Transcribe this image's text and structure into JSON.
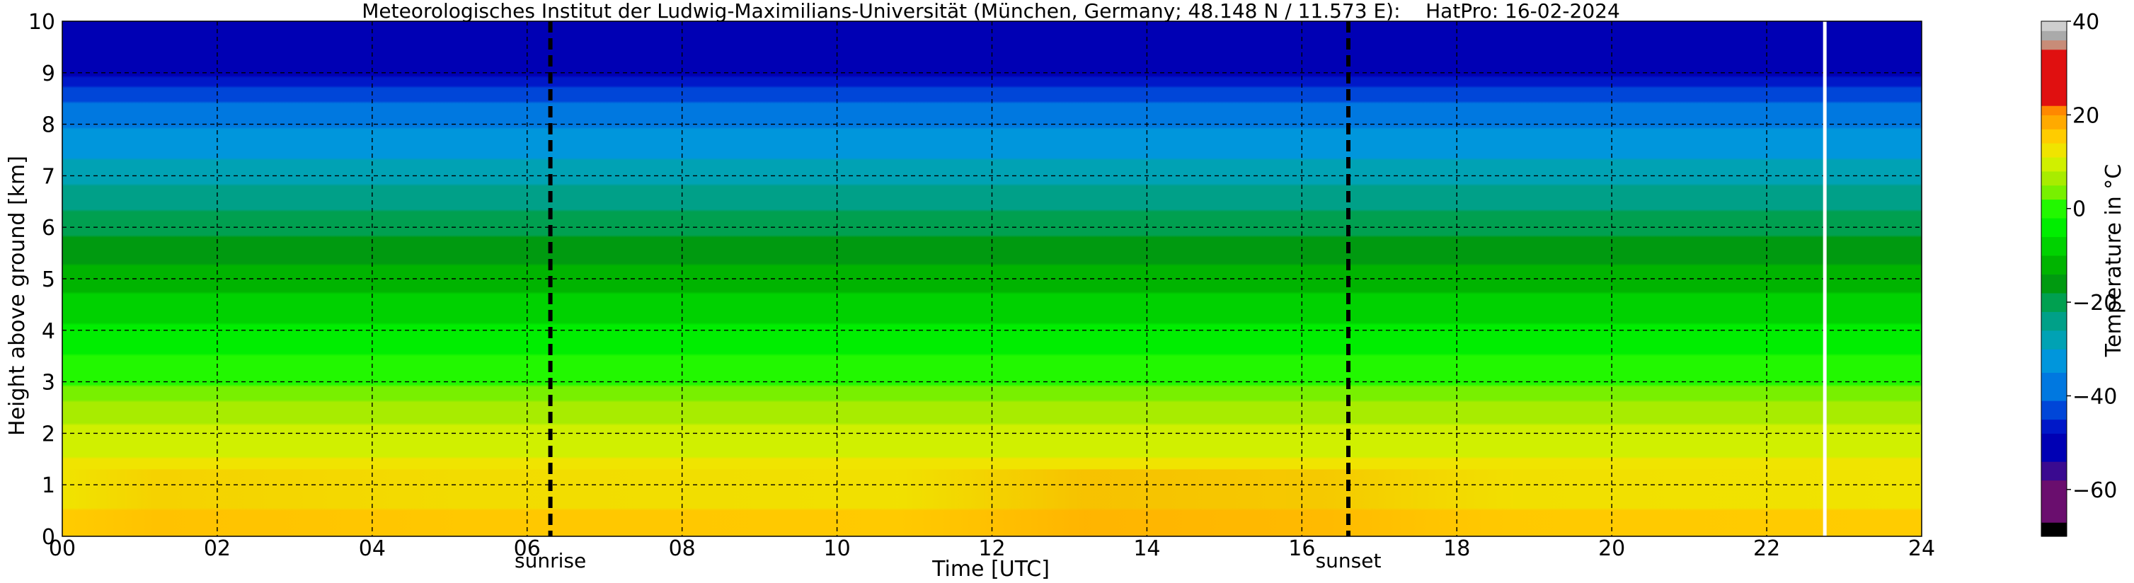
{
  "chart_data": {
    "type": "heatmap",
    "title": "Meteorologisches Institut der Ludwig-Maximilians-Universität (München, Germany; 48.148 N / 11.573 E):    HatPro: 16-02-2024",
    "xlabel": "Time [UTC]",
    "ylabel": "Height above ground [km]",
    "xlim": [
      0,
      24
    ],
    "ylim": [
      0,
      10
    ],
    "x_ticks": [
      "00",
      "02",
      "04",
      "06",
      "08",
      "10",
      "12",
      "14",
      "16",
      "18",
      "20",
      "22",
      "24"
    ],
    "y_ticks": [
      "0",
      "1",
      "2",
      "3",
      "4",
      "5",
      "6",
      "7",
      "8",
      "9",
      "10"
    ],
    "grid": true,
    "events": [
      {
        "label": "sunrise",
        "x": 6.3
      },
      {
        "label": "sunset",
        "x": 16.6
      }
    ],
    "data_end_x": 22.75,
    "colorbar": {
      "label": "Temperature in °C",
      "range": [
        -70,
        40
      ],
      "ticks": [
        "40",
        "20",
        "0",
        "−20",
        "−40",
        "−60"
      ],
      "colors": [
        {
          "from": -70,
          "to": -67,
          "color": "#000000"
        },
        {
          "from": -67,
          "to": -58,
          "color": "#6a0e6e"
        },
        {
          "from": -58,
          "to": -54,
          "color": "#3a0a90"
        },
        {
          "from": -54,
          "to": -48,
          "color": "#0000b4"
        },
        {
          "from": -48,
          "to": -45,
          "color": "#0018c8"
        },
        {
          "from": -45,
          "to": -41,
          "color": "#0046d8"
        },
        {
          "from": -41,
          "to": -35,
          "color": "#0078e0"
        },
        {
          "from": -35,
          "to": -30,
          "color": "#0096dc"
        },
        {
          "from": -30,
          "to": -26,
          "color": "#00a2b4"
        },
        {
          "from": -26,
          "to": -22,
          "color": "#00a088"
        },
        {
          "from": -22,
          "to": -18,
          "color": "#00a050"
        },
        {
          "from": -18,
          "to": -14,
          "color": "#009a10"
        },
        {
          "from": -14,
          "to": -10,
          "color": "#00b400"
        },
        {
          "from": -10,
          "to": -6,
          "color": "#00d200"
        },
        {
          "from": -6,
          "to": -2,
          "color": "#00ee00"
        },
        {
          "from": -2,
          "to": 2,
          "color": "#22f800"
        },
        {
          "from": 2,
          "to": 5,
          "color": "#78f000"
        },
        {
          "from": 5,
          "to": 8,
          "color": "#a8ec00"
        },
        {
          "from": 8,
          "to": 11,
          "color": "#d0f000"
        },
        {
          "from": 11,
          "to": 14,
          "color": "#f0e400"
        },
        {
          "from": 14,
          "to": 17,
          "color": "#ffcc00"
        },
        {
          "from": 17,
          "to": 20,
          "color": "#ffaa00"
        },
        {
          "from": 20,
          "to": 22,
          "color": "#ff8800"
        },
        {
          "from": 22,
          "to": 34,
          "color": "#e01010"
        },
        {
          "from": 34,
          "to": 36,
          "color": "#c88c78"
        },
        {
          "from": 36,
          "to": 38,
          "color": "#aaaaaa"
        },
        {
          "from": 38,
          "to": 40,
          "color": "#cfcfcf"
        }
      ]
    },
    "temperature_profile": [
      {
        "height_km": 0.0,
        "temp_c": 14.5
      },
      {
        "height_km": 0.5,
        "temp_c": 14.0
      },
      {
        "height_km": 1.0,
        "temp_c": 12.5
      },
      {
        "height_km": 1.5,
        "temp_c": 11.0
      },
      {
        "height_km": 2.0,
        "temp_c": 9.0
      },
      {
        "height_km": 2.5,
        "temp_c": 6.0
      },
      {
        "height_km": 3.0,
        "temp_c": 1.5
      },
      {
        "height_km": 3.5,
        "temp_c": -2.0
      },
      {
        "height_km": 4.0,
        "temp_c": -5.0
      },
      {
        "height_km": 4.5,
        "temp_c": -8.5
      },
      {
        "height_km": 5.0,
        "temp_c": -12.0
      },
      {
        "height_km": 5.5,
        "temp_c": -15.5
      },
      {
        "height_km": 6.0,
        "temp_c": -19.5
      },
      {
        "height_km": 6.5,
        "temp_c": -23.5
      },
      {
        "height_km": 7.0,
        "temp_c": -27.5
      },
      {
        "height_km": 7.5,
        "temp_c": -31.5
      },
      {
        "height_km": 8.0,
        "temp_c": -35.5
      },
      {
        "height_km": 8.5,
        "temp_c": -42.0
      },
      {
        "height_km": 9.0,
        "temp_c": -49.0
      },
      {
        "height_km": 9.5,
        "temp_c": -52.0
      },
      {
        "height_km": 10.0,
        "temp_c": -53.0
      }
    ]
  }
}
